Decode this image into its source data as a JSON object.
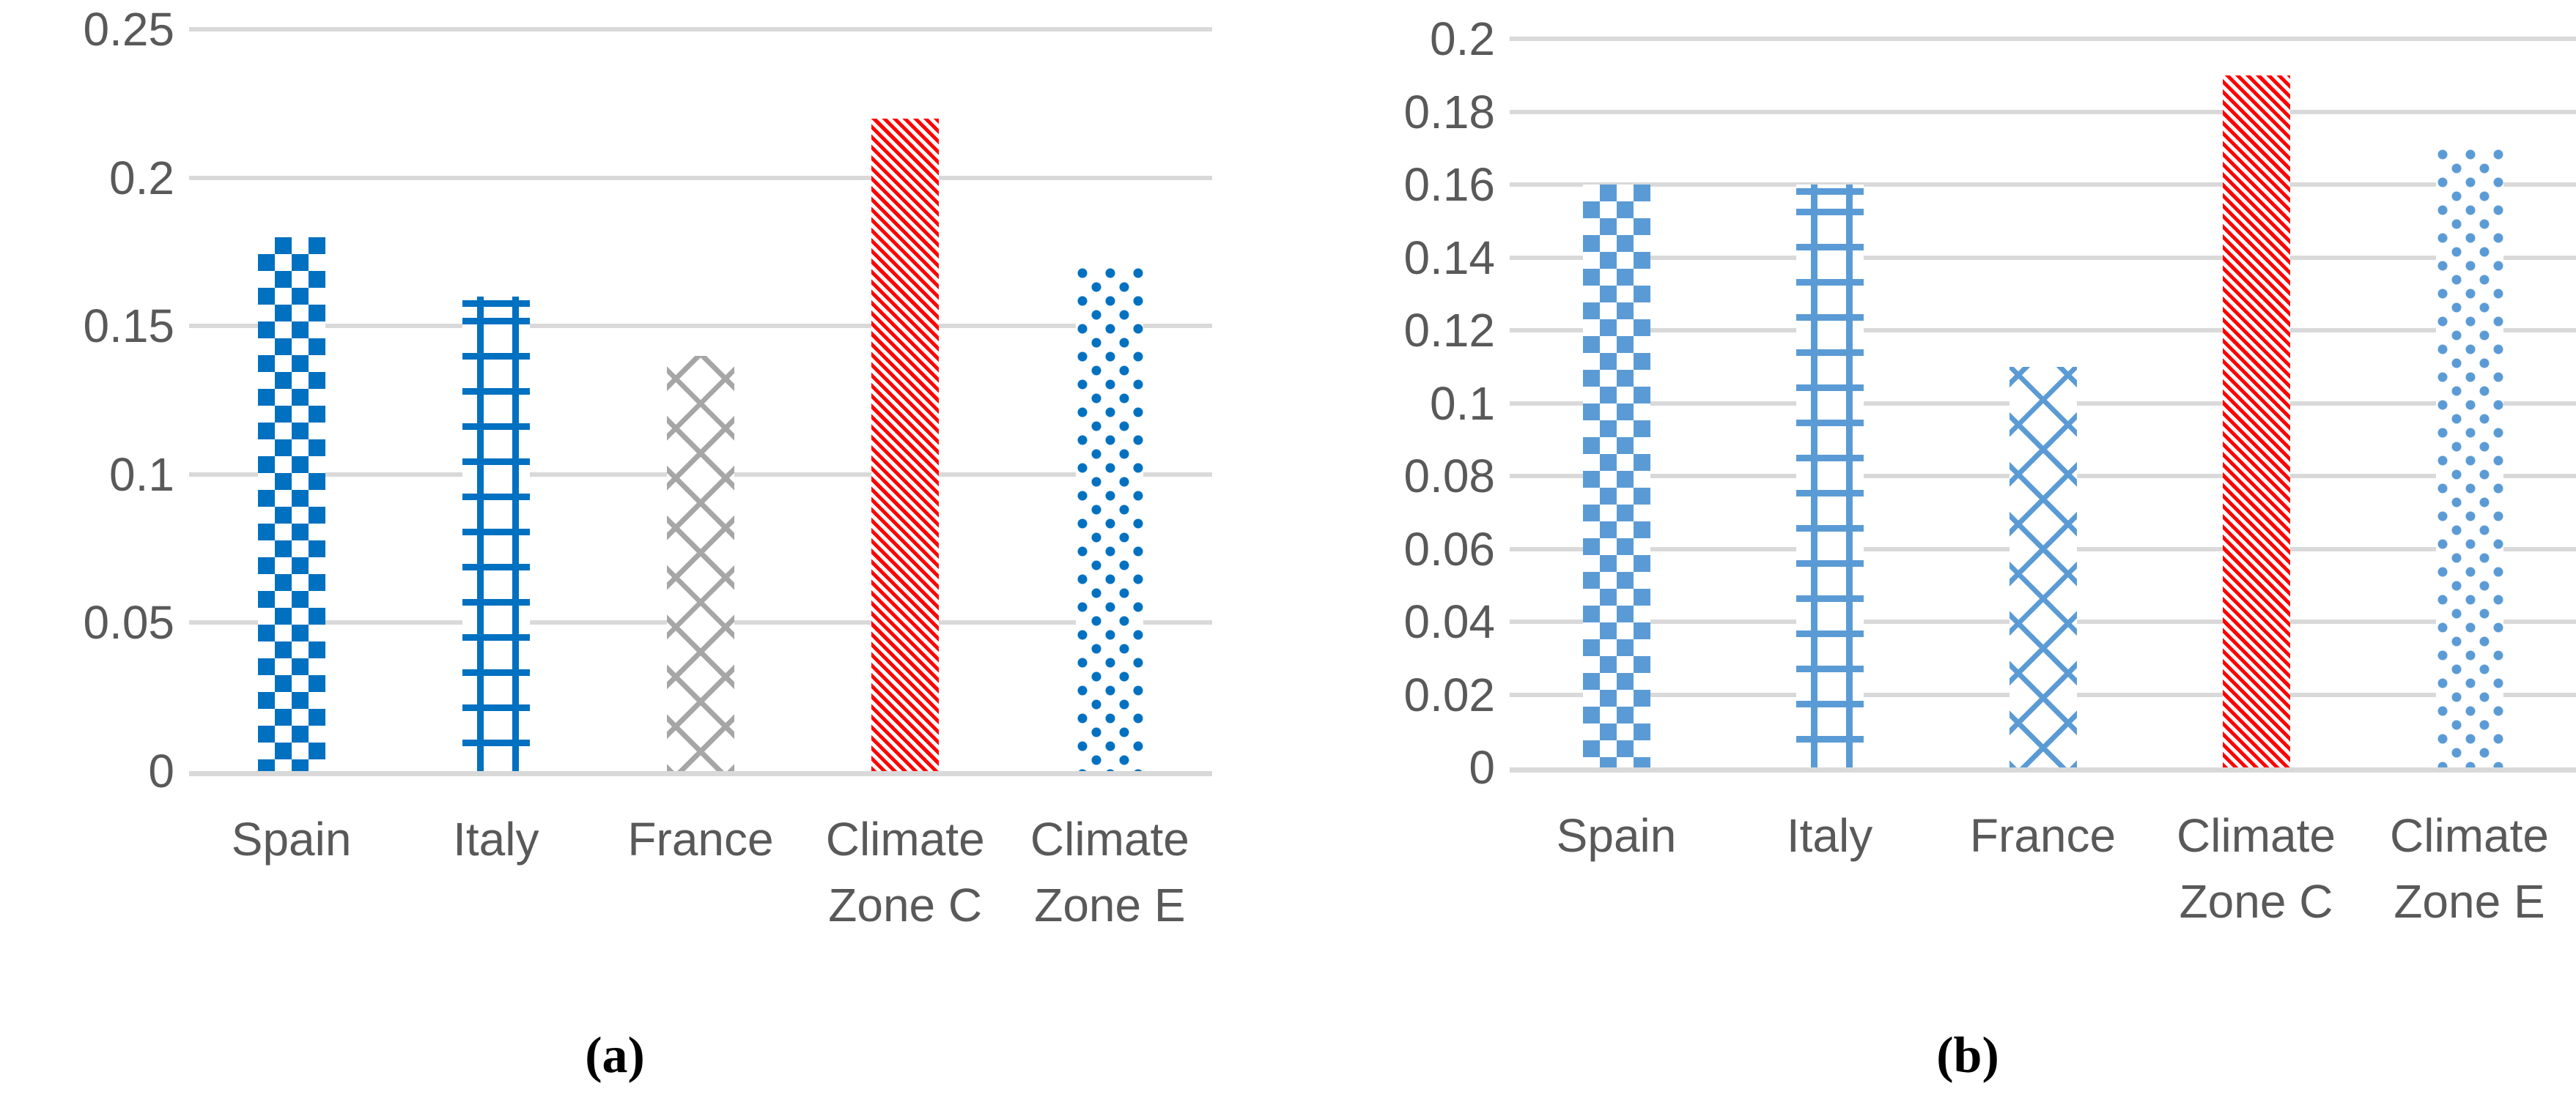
{
  "figure": {
    "background": "#FFFFFF"
  },
  "colors": {
    "gridline": "#D9D9D9",
    "axis_line": "#D9D9D9",
    "tick_label": "#595959",
    "category_label": "#595959",
    "strong_blue": "#0070C0",
    "light_blue": "#5B9BD5",
    "gray": "#A6A6A6",
    "red": "#FF0000"
  },
  "chart_data": [
    {
      "type": "bar",
      "panel": "a",
      "caption": "(a)",
      "title": "",
      "xlabel": "",
      "ylabel": "",
      "legend": "none",
      "grid": true,
      "categories": [
        "Spain",
        "Italy",
        "France",
        "Climate Zone C",
        "Climate Zone E"
      ],
      "category_labels": [
        [
          "Spain"
        ],
        [
          "Italy"
        ],
        [
          "France"
        ],
        [
          "Climate",
          "Zone C"
        ],
        [
          "Climate",
          "Zone E"
        ]
      ],
      "values": [
        0.18,
        0.16,
        0.14,
        0.22,
        0.17
      ],
      "ylim": [
        0,
        0.25
      ],
      "ytick_values": [
        0.25,
        0.2,
        0.15,
        0.1,
        0.05,
        0
      ],
      "yticks": [
        "0.25",
        "0.2",
        "0.15",
        "0.1",
        "0.05",
        "0"
      ],
      "bar_patterns": [
        "checker",
        "grid",
        "weave",
        "diag-stripe",
        "dots"
      ],
      "bar_colors": [
        "#0070C0",
        "#0070C0",
        "#A6A6A6",
        "#FF0000",
        "#0070C0"
      ]
    },
    {
      "type": "bar",
      "panel": "b",
      "caption": "(b)",
      "title": "",
      "xlabel": "",
      "ylabel": "",
      "legend": "none",
      "grid": true,
      "categories": [
        "Spain",
        "Italy",
        "France",
        "Climate Zone C",
        "Climate Zone E"
      ],
      "category_labels": [
        [
          "Spain"
        ],
        [
          "Italy"
        ],
        [
          "France"
        ],
        [
          "Climate",
          "Zone C"
        ],
        [
          "Climate",
          "Zone E"
        ]
      ],
      "values": [
        0.16,
        0.16,
        0.11,
        0.19,
        0.17
      ],
      "ylim": [
        0,
        0.2
      ],
      "ytick_values": [
        0.2,
        0.18,
        0.16,
        0.14,
        0.12,
        0.1,
        0.08,
        0.06,
        0.04,
        0.02,
        0
      ],
      "yticks": [
        "0.2",
        "0.18",
        "0.16",
        "0.14",
        "0.12",
        "0.1",
        "0.08",
        "0.06",
        "0.04",
        "0.02",
        "0"
      ],
      "bar_patterns": [
        "checker",
        "grid",
        "weave",
        "diag-stripe",
        "dots"
      ],
      "bar_colors": [
        "#5B9BD5",
        "#5B9BD5",
        "#5B9BD5",
        "#FF0000",
        "#5B9BD5"
      ]
    }
  ]
}
